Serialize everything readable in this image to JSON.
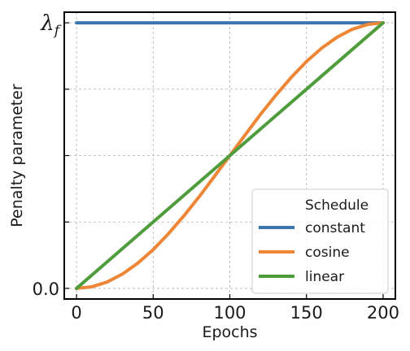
{
  "chart_data": {
    "type": "line",
    "title": "",
    "xlabel": "Epochs",
    "ylabel": "Penalty parameter",
    "xlim": [
      -8,
      208
    ],
    "ylim": [
      -0.04,
      1.04
    ],
    "x_ticks": [
      0,
      50,
      100,
      150,
      200
    ],
    "y_ticks": [
      {
        "value": 0.0,
        "label": "0.0"
      },
      {
        "value": 0.25,
        "label": ""
      },
      {
        "value": 0.5,
        "label": ""
      },
      {
        "value": 0.75,
        "label": ""
      },
      {
        "value": 1.0,
        "label": "λ_f"
      }
    ],
    "y_tick_top_base": "λ",
    "y_tick_top_sub": "f",
    "grid": true,
    "legend": {
      "title": "Schedule",
      "placement": "lower-right"
    },
    "series": [
      {
        "name": "constant",
        "color": "#3a75ad",
        "x": [
          0,
          200
        ],
        "y": [
          1.0,
          1.0
        ]
      },
      {
        "name": "cosine",
        "color": "#ee8636",
        "x": [
          0,
          10,
          20,
          30,
          40,
          50,
          60,
          70,
          80,
          90,
          100,
          110,
          120,
          130,
          140,
          150,
          160,
          170,
          180,
          190,
          200
        ],
        "y": [
          0.0,
          0.006,
          0.024,
          0.054,
          0.095,
          0.146,
          0.206,
          0.273,
          0.345,
          0.422,
          0.5,
          0.578,
          0.655,
          0.727,
          0.794,
          0.854,
          0.905,
          0.946,
          0.976,
          0.994,
          1.0
        ]
      },
      {
        "name": "linear",
        "color": "#4f9c3c",
        "x": [
          0,
          200
        ],
        "y": [
          0.0,
          1.0
        ]
      }
    ]
  }
}
